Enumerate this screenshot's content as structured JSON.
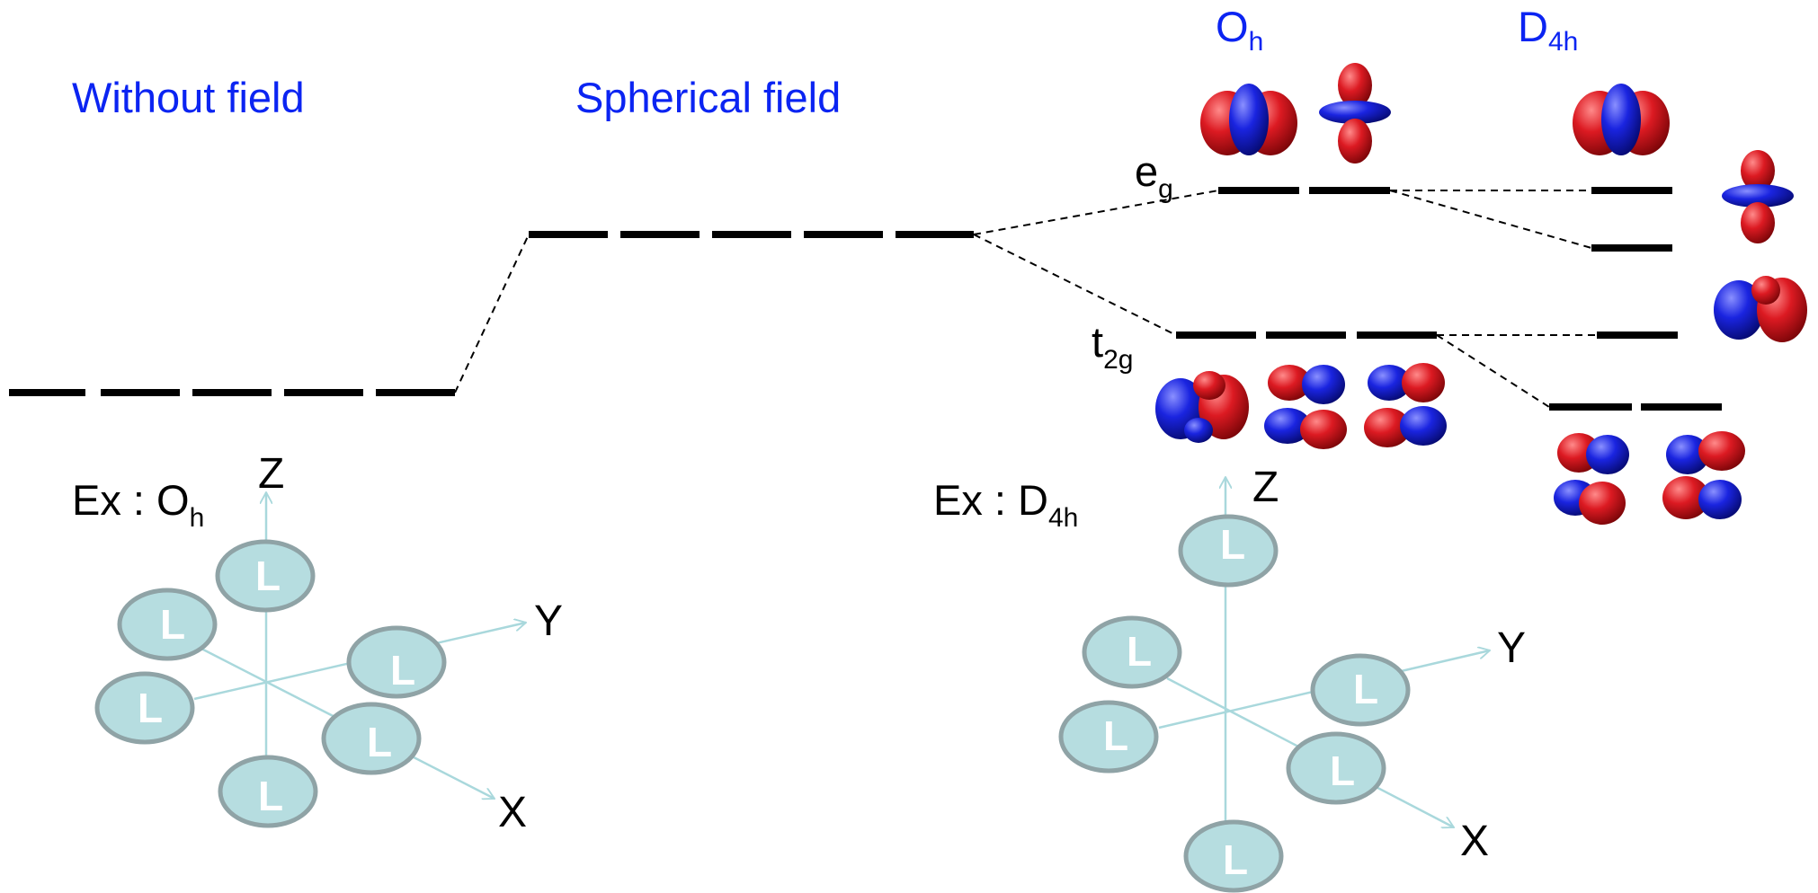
{
  "titles": {
    "without_field": "Without field",
    "spherical_field": "Spherical field",
    "oh": {
      "main": "O",
      "sub": "h"
    },
    "d4h": {
      "main": "D",
      "sub": "4h"
    }
  },
  "labels": {
    "eg": {
      "main": "e",
      "sub": "g"
    },
    "t2g": {
      "main": "t",
      "sub": "2g"
    }
  },
  "examples": {
    "oh": {
      "prefix": "Ex : O",
      "sub": "h"
    },
    "d4h": {
      "prefix": "Ex : D",
      "sub": "4h"
    }
  },
  "axes": {
    "z": "Z",
    "y": "Y",
    "x": "X"
  },
  "ligand_label": "L",
  "colors": {
    "title": "#0b24f2",
    "ligand_fill": "#b6dde0",
    "ligand_stroke": "#8fa3a6",
    "axis": "#a9d8dc",
    "lobe_red": "#d2141c",
    "lobe_blue": "#1a22d6"
  }
}
